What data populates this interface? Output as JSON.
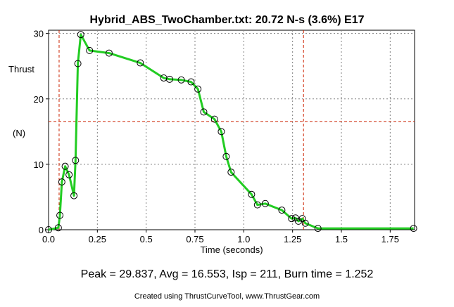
{
  "chart_data": {
    "type": "line",
    "title": "Hybrid_ABS_TwoChamber.txt:  20.72 N-s (3.6%) E17",
    "xlabel": "Time (seconds)",
    "ylabel_line1": "Thrust",
    "ylabel_line2": "(N)",
    "xlim": [
      0,
      1.875
    ],
    "ylim": [
      0,
      30.5
    ],
    "x_ticks": [
      "0.0",
      "0.25",
      "0.5",
      "0.75",
      "1.0",
      "1.25",
      "1.5",
      "1.75"
    ],
    "x_tick_values": [
      0,
      0.25,
      0.5,
      0.75,
      1.0,
      1.25,
      1.5,
      1.75
    ],
    "y_ticks": [
      "0",
      "10",
      "20",
      "30"
    ],
    "y_tick_values": [
      0,
      10,
      20,
      30
    ],
    "grid": true,
    "reference_lines": {
      "burn_start": 0.054,
      "burn_end": 1.306,
      "avg_thrust": 16.553
    },
    "series": [
      {
        "color": "#22cc22",
        "points": [
          [
            0.0,
            0.0
          ],
          [
            0.05,
            0.3
          ],
          [
            0.058,
            2.2
          ],
          [
            0.068,
            7.3
          ],
          [
            0.085,
            9.7
          ],
          [
            0.105,
            8.4
          ],
          [
            0.13,
            5.2
          ],
          [
            0.138,
            10.6
          ],
          [
            0.15,
            25.4
          ],
          [
            0.165,
            29.837
          ],
          [
            0.21,
            27.4
          ],
          [
            0.31,
            27.0
          ],
          [
            0.47,
            25.5
          ],
          [
            0.59,
            23.2
          ],
          [
            0.62,
            23.0
          ],
          [
            0.68,
            22.9
          ],
          [
            0.73,
            22.6
          ],
          [
            0.765,
            21.5
          ],
          [
            0.795,
            18.0
          ],
          [
            0.85,
            16.9
          ],
          [
            0.885,
            15.0
          ],
          [
            0.91,
            11.2
          ],
          [
            0.935,
            8.8
          ],
          [
            1.04,
            5.4
          ],
          [
            1.07,
            3.8
          ],
          [
            1.11,
            4.0
          ],
          [
            1.195,
            3.0
          ],
          [
            1.245,
            1.7
          ],
          [
            1.265,
            1.8
          ],
          [
            1.28,
            1.3
          ],
          [
            1.3,
            1.7
          ],
          [
            1.315,
            1.0
          ],
          [
            1.38,
            0.2
          ],
          [
            1.87,
            0.2
          ]
        ]
      }
    ]
  },
  "stats_text": "Peak = 29.837, Avg = 16.553, Isp = 211, Burn time = 1.252",
  "credit_text": "Created using ThrustCurveTool, www.ThrustGear.com",
  "colors": {
    "line": "#22cc22",
    "reference": "#cc2200",
    "grid": "#808080",
    "marker": "#000000"
  }
}
